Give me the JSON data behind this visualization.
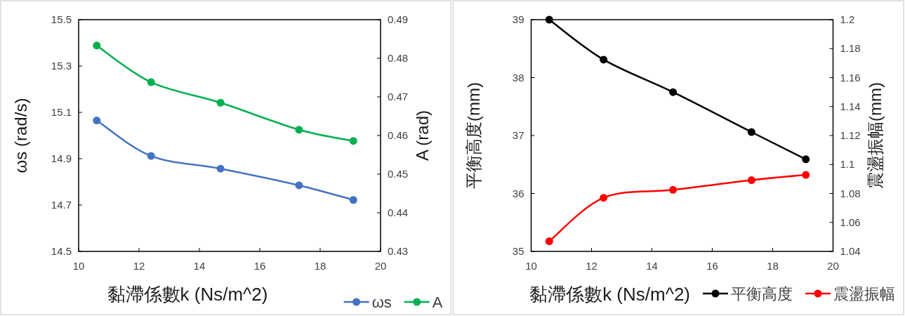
{
  "chart_data": [
    {
      "type": "line",
      "xlabel": "黏滯係數k  (Ns/m^2)",
      "ylabel": "ωs  (rad/s)",
      "y2label": "A  (rad)",
      "x": [
        10.6,
        12.4,
        14.7,
        17.3,
        19.1
      ],
      "xlim": [
        10,
        20
      ],
      "xticks": [
        10,
        12,
        14,
        16,
        18,
        20
      ],
      "ylim": [
        14.5,
        15.5
      ],
      "yticks": [
        14.5,
        14.7,
        14.9,
        15.1,
        15.3,
        15.5
      ],
      "y2lim": [
        0.43,
        0.49
      ],
      "y2ticks": [
        0.43,
        0.44,
        0.45,
        0.46,
        0.47,
        0.48,
        0.49
      ],
      "legend": "bottom right",
      "marker": "circle",
      "series": [
        {
          "name": "ωs",
          "color": "#4472c4",
          "values": [
            15.065,
            14.912,
            14.857,
            14.785,
            14.722
          ]
        },
        {
          "name": "A",
          "color": "#00b050",
          "axis": "y2",
          "values": [
            0.4833,
            0.4738,
            0.4685,
            0.4615,
            0.4586
          ]
        }
      ]
    },
    {
      "type": "line",
      "xlabel": "黏滯係數k  (Ns/m^2)",
      "ylabel": "平衡高度(mm)",
      "y2label": "震盪振幅(mm)",
      "x": [
        10.6,
        12.4,
        14.7,
        17.3,
        19.1
      ],
      "xlim": [
        10,
        20
      ],
      "xticks": [
        10,
        12,
        14,
        16,
        18,
        20
      ],
      "ylim": [
        35,
        39
      ],
      "yticks": [
        35,
        36,
        37,
        38,
        39
      ],
      "y2lim": [
        1.04,
        1.2
      ],
      "y2ticks": [
        1.04,
        1.06,
        1.08,
        1.1,
        1.12,
        1.14,
        1.16,
        1.18,
        1.2
      ],
      "legend": "bottom right",
      "marker": "circle",
      "series": [
        {
          "name": "平衡高度",
          "color": "#000000",
          "values": [
            39.0,
            38.31,
            37.75,
            37.06,
            36.59
          ]
        },
        {
          "name": "震盪振幅",
          "color": "#ff0000",
          "axis": "y2",
          "values": [
            1.047,
            1.077,
            1.0825,
            1.0892,
            1.0928
          ]
        }
      ]
    }
  ]
}
